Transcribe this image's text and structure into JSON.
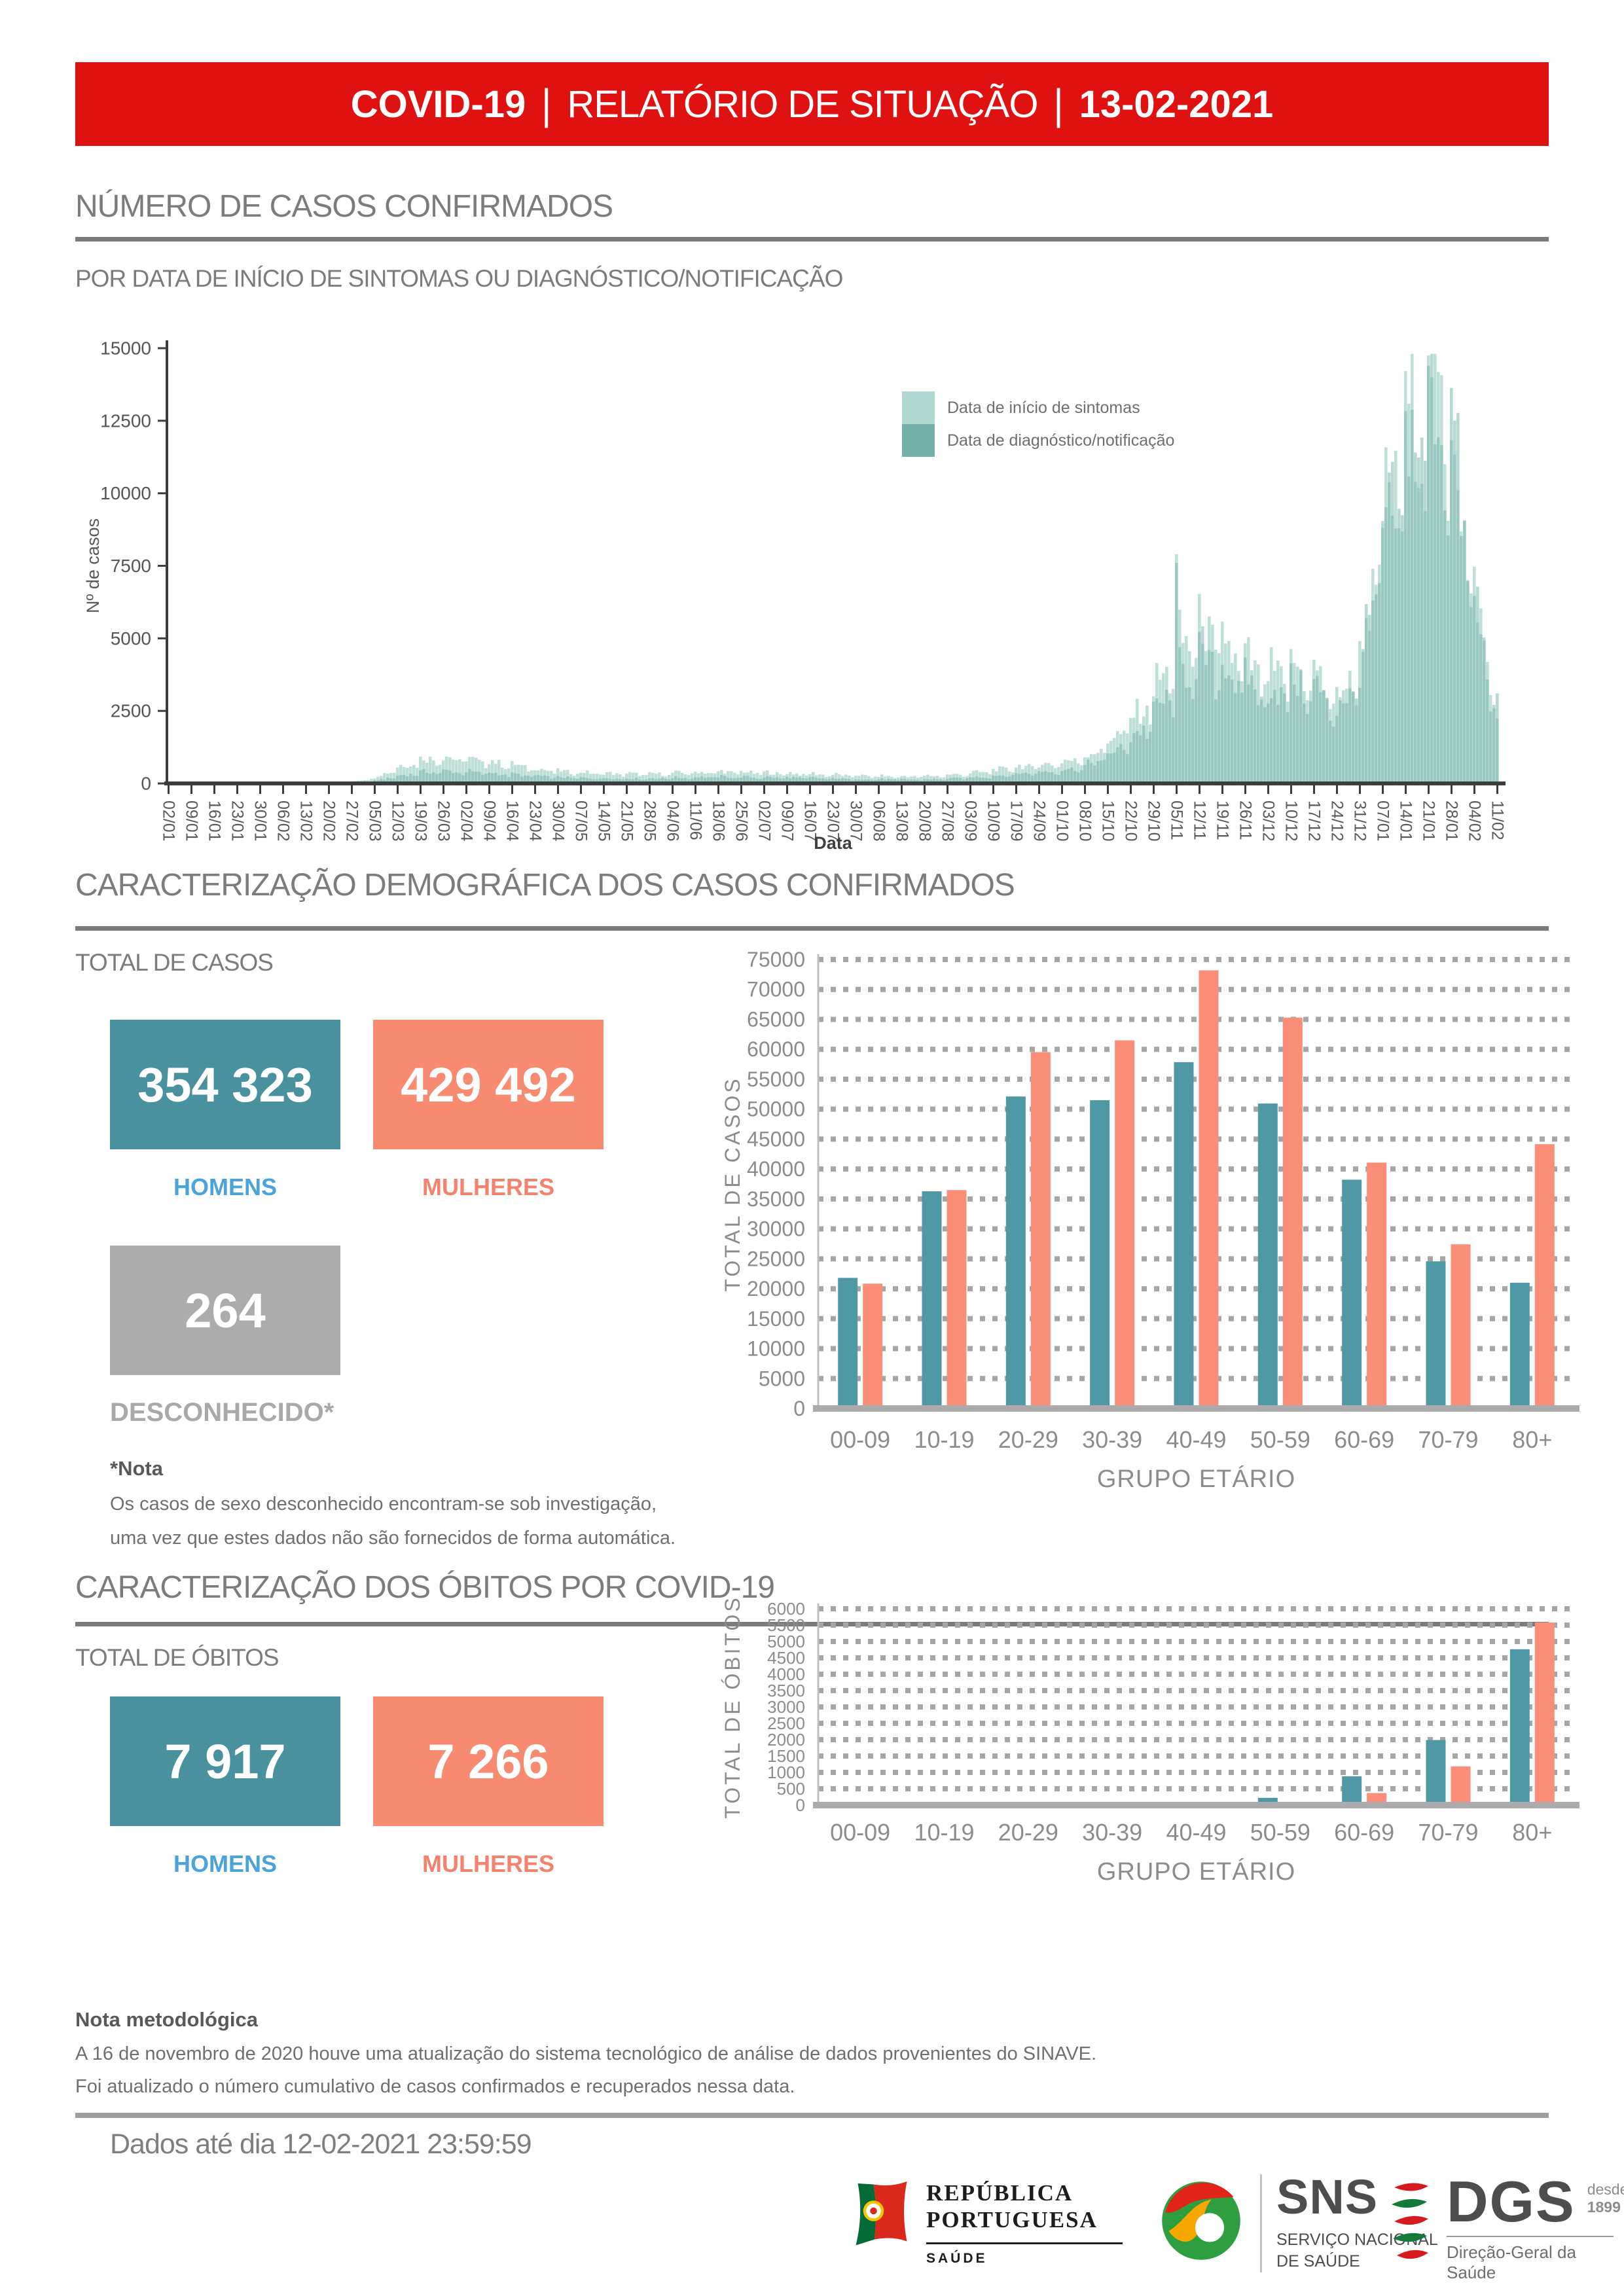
{
  "header": {
    "title_left": "COVID-19",
    "separator": "|",
    "title_mid": "RELATÓRIO DE SITUAÇÃO",
    "title_date": "13-02-2021",
    "banner_color": "#E01111"
  },
  "section_cases": {
    "title": "NÚMERO DE CASOS CONFIRMADOS",
    "subtitle": "POR DATA DE INÍCIO DE SINTOMAS OU DIAGNÓSTICO/NOTIFICAÇÃO"
  },
  "section_demographics": {
    "title": "CARACTERIZAÇÃO DEMOGRÁFICA DOS CASOS CONFIRMADOS",
    "total_label": "TOTAL DE CASOS",
    "men_value": "354 323",
    "men_label": "HOMENS",
    "women_value": "429 492",
    "women_label": "MULHERES",
    "unknown_value": "264",
    "unknown_label": "DESCONHECIDO*",
    "note_title": "*Nota",
    "note_lines": [
      "Os casos de sexo desconhecido encontram-se sob investigação,",
      "uma vez que estes dados não são fornecidos de forma automática."
    ],
    "men_color": "#4A91A0",
    "women_color": "#F78B72",
    "unknown_color": "#ACACAC",
    "men_text_color": "#4AA4DB",
    "women_text_color": "#F5826C"
  },
  "section_deaths": {
    "title": "CARACTERIZAÇÃO DOS ÓBITOS POR COVID-19",
    "total_label": "TOTAL DE ÓBITOS",
    "men_value": "7 917",
    "men_label": "HOMENS",
    "women_value": "7 266",
    "women_label": "MULHERES"
  },
  "methodology": {
    "title": "Nota metodológica",
    "lines": [
      "A 16 de novembro de 2020 houve uma atualização do sistema tecnológico de análise de dados provenientes do SINAVE.",
      "Foi atualizado o número cumulativo de casos confirmados e recuperados nessa data."
    ]
  },
  "footer": {
    "data_until": "Dados até dia 12-02-2021 23:59:59",
    "logos": {
      "republica": {
        "line1": "REPÚBLICA",
        "line2": "PORTUGUESA",
        "sub": "SAÚDE"
      },
      "sns": {
        "abbr": "SNS",
        "line1": "SERVIÇO NACIONAL",
        "line2": "DE SAÚDE"
      },
      "dgs": {
        "abbr": "DGS",
        "since_word": "desde",
        "since_year": "1899",
        "sub": "Direção-Geral da Saúde"
      }
    }
  },
  "chart_data": [
    {
      "id": "cases-timeline",
      "type": "bar",
      "title": "POR DATA DE INÍCIO DE SINTOMAS OU DIAGNÓSTICO/NOTIFICAÇÃO",
      "xlabel": "Data",
      "ylabel": "Nº de casos",
      "ylim": [
        0,
        15000
      ],
      "ytick_step": 2500,
      "grid": false,
      "legend_position": "inside top-right",
      "x_start": "02/01/2020",
      "x_end": "11/02/2021",
      "n_days": 407,
      "x_weekly_ticks": [
        "02/01",
        "09/01",
        "16/01",
        "23/01",
        "30/01",
        "06/02",
        "13/02",
        "20/02",
        "27/02",
        "05/03",
        "12/03",
        "19/03",
        "26/03",
        "02/04",
        "09/04",
        "16/04",
        "23/04",
        "30/04",
        "07/05",
        "14/05",
        "21/05",
        "28/05",
        "04/06",
        "11/06",
        "18/06",
        "25/06",
        "02/07",
        "09/07",
        "16/07",
        "23/07",
        "30/07",
        "06/08",
        "13/08",
        "20/08",
        "27/08",
        "03/09",
        "10/09",
        "17/09",
        "24/09",
        "01/10",
        "08/10",
        "15/10",
        "22/10",
        "29/10",
        "05/11",
        "12/11",
        "19/11",
        "26/11",
        "03/12",
        "10/12",
        "17/12",
        "24/12",
        "31/12",
        "07/01",
        "14/01",
        "21/01",
        "28/01",
        "04/02",
        "11/02"
      ],
      "series": [
        {
          "name": "Data de início de sintomas",
          "color": "#AFD8D0",
          "weekly_values": [
            3,
            3,
            4,
            4,
            5,
            8,
            12,
            25,
            60,
            200,
            550,
            820,
            900,
            840,
            760,
            640,
            520,
            420,
            380,
            350,
            330,
            320,
            350,
            380,
            400,
            390,
            370,
            350,
            330,
            300,
            270,
            250,
            240,
            250,
            280,
            350,
            450,
            560,
            640,
            720,
            900,
            1400,
            2100,
            3100,
            4600,
            5300,
            4800,
            4100,
            3600,
            3900,
            3800,
            2900,
            4200,
            8800,
            11800,
            14200,
            12600,
            6500,
            2600
          ]
        },
        {
          "name": "Data de diagnóstico/notificação",
          "color": "#74AFA8",
          "weekly_values": [
            1,
            1,
            1,
            1,
            2,
            3,
            5,
            10,
            25,
            90,
            250,
            380,
            420,
            400,
            360,
            310,
            260,
            210,
            190,
            180,
            170,
            170,
            190,
            210,
            230,
            220,
            210,
            200,
            190,
            170,
            150,
            140,
            135,
            140,
            160,
            200,
            260,
            330,
            390,
            450,
            580,
            950,
            1500,
            2300,
            3600,
            4300,
            4000,
            3500,
            3100,
            3400,
            3300,
            2500,
            3800,
            8200,
            11200,
            13600,
            12200,
            6300,
            2500
          ]
        }
      ],
      "notable_points": [
        {
          "week_index": 44,
          "series": 0,
          "value": 7900
        },
        {
          "week_index": 44,
          "series": 1,
          "value": 7600
        },
        {
          "week_index": 55,
          "series": 0,
          "value": 14750
        },
        {
          "week_index": 55,
          "series": 1,
          "value": 14400
        }
      ],
      "note": "daily bars; weekly_values are estimated anchors read from the plot"
    },
    {
      "id": "cases-by-age",
      "type": "bar",
      "categories": [
        "00-09",
        "10-19",
        "20-29",
        "30-39",
        "40-49",
        "50-59",
        "60-69",
        "70-79",
        "80+"
      ],
      "series": [
        {
          "name": "Homens",
          "color": "#4F98A6",
          "values": [
            21822,
            36283,
            52119,
            51497,
            57856,
            50939,
            38218,
            24582,
            21007
          ]
        },
        {
          "name": "Mulheres",
          "color": "#FA8E79",
          "values": [
            20855,
            36487,
            59527,
            61498,
            73190,
            65298,
            41071,
            27419,
            44147
          ]
        }
      ],
      "xlabel": "GRUPO ETÁRIO",
      "ylabel": "TOTAL DE CASOS",
      "ylim": [
        0,
        75000
      ],
      "ytick_step": 5000,
      "grid": "dotted horizontal"
    },
    {
      "id": "deaths-by-age",
      "type": "bar",
      "categories": [
        "00-09",
        "10-19",
        "20-29",
        "30-39",
        "40-49",
        "50-59",
        "60-69",
        "70-79",
        "80+"
      ],
      "series": [
        {
          "name": "Homens",
          "color": "#4F98A6",
          "values": [
            1,
            1,
            3,
            13,
            43,
            223,
            880,
            1989,
            4764
          ]
        },
        {
          "name": "Mulheres",
          "color": "#FA8E79",
          "values": [
            0,
            1,
            2,
            11,
            28,
            90,
            369,
            1183,
            5582
          ]
        }
      ],
      "xlabel": "GRUPO ETÁRIO",
      "ylabel": "TOTAL DE ÓBITOS",
      "ylim": [
        0,
        6000
      ],
      "ytick_step": 500,
      "grid": "dotted horizontal"
    }
  ]
}
